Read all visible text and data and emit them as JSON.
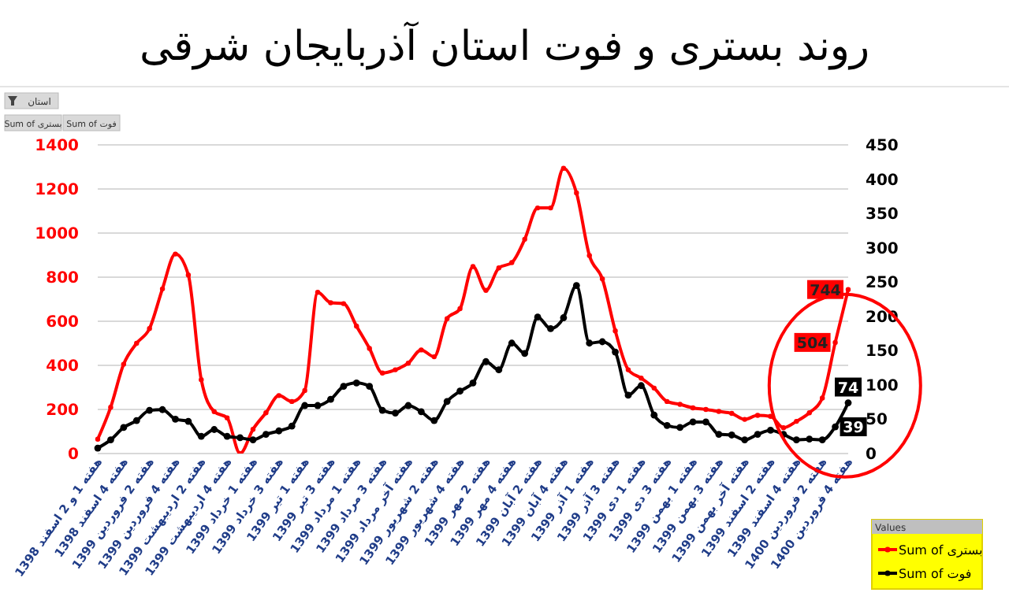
{
  "chart_data": {
    "type": "line",
    "title": "روند بستری و فوت استان آذربایجان شرقی",
    "categories": [
      "هفته 1 و 2 اسفند 1398",
      null,
      "هفته 4 اسفند 1398",
      null,
      "هفته 2 فروردین 1399",
      null,
      "هفته 4 فروردین 1399",
      null,
      "هفته 2 اردیبهشت 1399",
      null,
      "هفته 4 اردیبهشت 1399",
      null,
      "هفته 1 خرداد 1399",
      null,
      "هفته 3 خرداد 1399",
      null,
      "هفته 1 تیر 1399",
      null,
      "هفته 3 تیر 1399",
      null,
      "هفته 1 مرداد 1399",
      null,
      "هفته 3 مرداد 1399",
      null,
      "هفته آخر مرداد 1399",
      null,
      "هفته 2 شهریور 1399",
      null,
      "هفته 4 شهریور 1399",
      null,
      "هفته 2 مهر 1399",
      null,
      "هفته 4 مهر 1399",
      null,
      "هفته 2 آبان 1399",
      null,
      "هفته 4 آبان 1399",
      null,
      "هفته 1 آذر 1399",
      null,
      "هفته 3 آذر 1399",
      null,
      "هفته 1 دی 1399",
      null,
      "هفته 3 دی 1399",
      null,
      "هفته 1 بهمن 1399",
      null,
      "هفته 3 بهمن 1399",
      null,
      "هفته آخر بهمن 1399",
      null,
      "هفته 2 اسفند 1399",
      null,
      "هفته 4 اسفند 1399",
      null,
      "هفته 2 فروردین 1400",
      null,
      "هفته 4 فروردین 1400"
    ],
    "series": [
      {
        "name": "Sum of بستری",
        "color": "#ff0000",
        "values": [
          65,
          210,
          405,
          500,
          567,
          747,
          905,
          810,
          335,
          190,
          162,
          0,
          110,
          185,
          263,
          236,
          286,
          731,
          684,
          680,
          578,
          477,
          365,
          380,
          410,
          470,
          439,
          612,
          657,
          848,
          740,
          842,
          866,
          972,
          1114,
          1114,
          1294,
          1182,
          898,
          792,
          556,
          380,
          342,
          297,
          236,
          223,
          207,
          200,
          191,
          182,
          155,
          173,
          169,
          117,
          146,
          185,
          252,
          504,
          744
        ],
        "value_labels": [
          null,
          null,
          null,
          null,
          null,
          null,
          null,
          null,
          null,
          null,
          null,
          null,
          null,
          null,
          null,
          null,
          null,
          null,
          null,
          null,
          null,
          null,
          null,
          null,
          null,
          null,
          null,
          null,
          null,
          null,
          null,
          null,
          null,
          null,
          null,
          null,
          null,
          null,
          null,
          null,
          null,
          null,
          null,
          null,
          null,
          null,
          null,
          null,
          null,
          null,
          null,
          null,
          null,
          null,
          null,
          null,
          null,
          "504",
          "744"
        ]
      },
      {
        "name": "Sum of فوت",
        "color": "#000000",
        "axis": "y2",
        "values": [
          8,
          20,
          38,
          48,
          63,
          64,
          50,
          47,
          25,
          35,
          25,
          23,
          20,
          28,
          33,
          40,
          70,
          70,
          79,
          98,
          103,
          98,
          63,
          59,
          70,
          61,
          48,
          76,
          91,
          103,
          134,
          122,
          161,
          146,
          199,
          182,
          198,
          245,
          161,
          163,
          148,
          85,
          99,
          56,
          41,
          38,
          46,
          46,
          28,
          27,
          20,
          28,
          34,
          28,
          20,
          21,
          20,
          39,
          74
        ],
        "value_labels": [
          null,
          null,
          null,
          null,
          null,
          null,
          null,
          null,
          null,
          null,
          null,
          null,
          null,
          null,
          null,
          null,
          null,
          null,
          null,
          null,
          null,
          null,
          null,
          null,
          null,
          null,
          null,
          null,
          null,
          null,
          null,
          null,
          null,
          null,
          null,
          null,
          null,
          null,
          null,
          null,
          null,
          null,
          null,
          null,
          null,
          null,
          null,
          null,
          null,
          null,
          null,
          null,
          null,
          null,
          null,
          null,
          null,
          "39",
          "74"
        ]
      }
    ],
    "ylim": [
      0,
      1400
    ],
    "yticks": [
      0,
      200,
      400,
      600,
      800,
      1000,
      1200,
      1400
    ],
    "y2lim": [
      0,
      450
    ],
    "y2ticks": [
      0,
      50,
      100,
      150,
      200,
      250,
      300,
      350,
      400,
      450
    ],
    "grid": "y",
    "legend": "bottom right",
    "legend_title": "Values",
    "marker": "circle",
    "line_style": "solid",
    "annotations": [
      "استان",
      "Sum of بستری",
      "Sum of فوت"
    ]
  }
}
